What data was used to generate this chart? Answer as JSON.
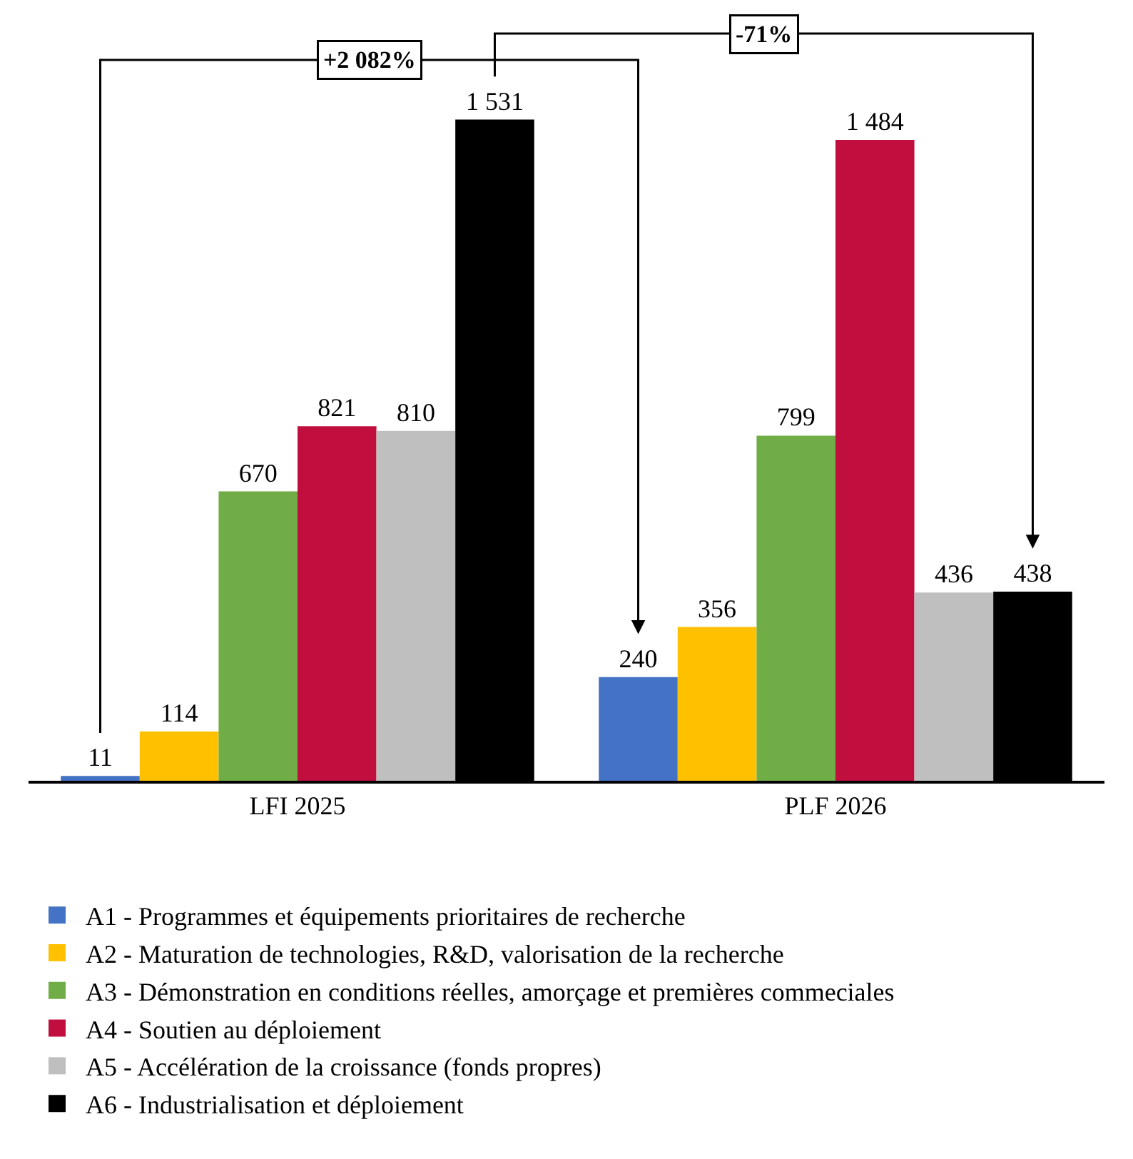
{
  "chart_data": {
    "type": "bar",
    "categories": [
      "LFI 2025",
      "PLF 2026"
    ],
    "series": [
      {
        "name": "A1 - Programmes et équipements prioritaires de recherche",
        "color": "#4472c4",
        "values": [
          11,
          240
        ],
        "value_labels": [
          "11",
          "240"
        ]
      },
      {
        "name": "A2 - Maturation de technologies, R&D, valorisation de la recherche",
        "color": "#ffc000",
        "values": [
          114,
          356
        ],
        "value_labels": [
          "114",
          "356"
        ]
      },
      {
        "name": "A3 - Démonstration en conditions réelles, amorçage et premières commeciales",
        "color": "#70ad47",
        "values": [
          670,
          799
        ],
        "value_labels": [
          "670",
          "799"
        ]
      },
      {
        "name": "A4 - Soutien au déploiement",
        "color": "#c00f3f",
        "values": [
          821,
          1484
        ],
        "value_labels": [
          "821",
          "1 484"
        ]
      },
      {
        "name": "A5 - Accélération de la croissance (fonds propres)",
        "color": "#bfbfbf",
        "values": [
          810,
          436
        ],
        "value_labels": [
          "810",
          "436"
        ]
      },
      {
        "name": "A6 - Industrialisation et déploiement",
        "color": "#000000",
        "values": [
          1531,
          438
        ],
        "value_labels": [
          "1 531",
          "438"
        ]
      }
    ],
    "annotations": [
      "+2 082%",
      "-71%"
    ],
    "legend": "bottom"
  }
}
